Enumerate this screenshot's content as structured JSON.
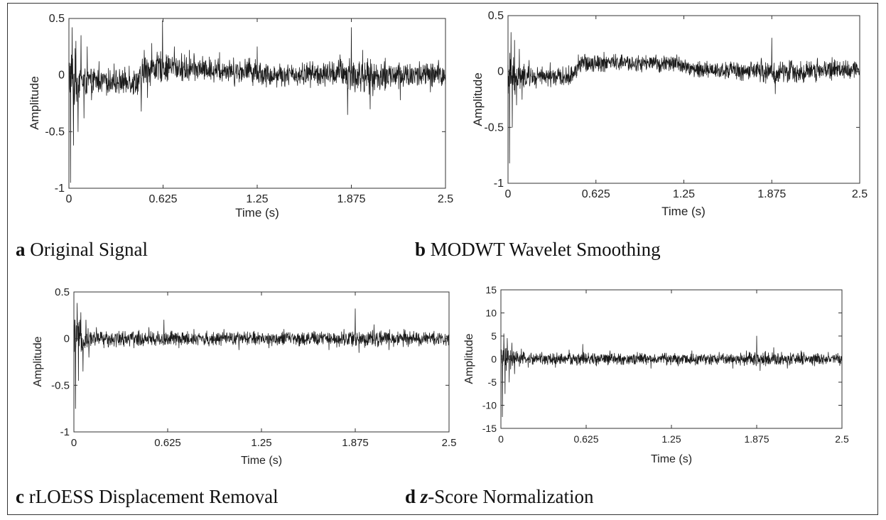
{
  "chart_data": [
    {
      "type": "line",
      "panel_letter": "a",
      "caption_text": "Original Signal",
      "xlabel": "Time (s)",
      "ylabel": "Amplitude",
      "xlim": [
        0,
        2.5
      ],
      "ylim": [
        -1,
        0.5
      ],
      "xticks": [
        0,
        0.625,
        1.25,
        1.875,
        2.5
      ],
      "xtick_labels": [
        "0",
        "0.625",
        "1.25",
        "1.875",
        "2.5"
      ],
      "yticks": [
        -1,
        -0.5,
        0,
        0.5
      ],
      "ytick_labels": [
        "-1",
        "-0.5",
        "0",
        "0.5"
      ],
      "grid": false,
      "series_color": "#1a1a1a",
      "series": [
        {
          "x": [
            0,
            0.01,
            0.02,
            0.03,
            0.045,
            0.06,
            0.08,
            0.1,
            0.12,
            0.15,
            0.2,
            0.25,
            0.3,
            0.35,
            0.4,
            0.45,
            0.48,
            0.5,
            0.52,
            0.55,
            0.6,
            0.62,
            0.65,
            0.7,
            0.75,
            0.8,
            0.9,
            1.0,
            1.1,
            1.2,
            1.25,
            1.3,
            1.4,
            1.5,
            1.6,
            1.7,
            1.8,
            1.85,
            1.875,
            1.9,
            1.95,
            2.0,
            2.1,
            2.2,
            2.3,
            2.4,
            2.5
          ],
          "y": [
            0.05,
            -0.95,
            0.42,
            -0.62,
            0.3,
            -0.5,
            0.35,
            -0.38,
            0.25,
            -0.22,
            0.12,
            -0.18,
            0.1,
            -0.15,
            0.08,
            -0.12,
            -0.32,
            0.22,
            -0.2,
            0.28,
            0.12,
            0.48,
            0.05,
            0.25,
            -0.05,
            0.22,
            0.0,
            0.2,
            -0.1,
            0.15,
            0.25,
            -0.05,
            0.1,
            -0.08,
            0.12,
            -0.1,
            0.18,
            -0.35,
            0.42,
            -0.15,
            0.22,
            -0.3,
            0.15,
            -0.22,
            0.1,
            -0.15,
            0.05
          ],
          "noise_amp": [
            0.25,
            0.25,
            0.24,
            0.22,
            0.2,
            0.16,
            0.14,
            0.12,
            0.11,
            0.1,
            0.09,
            0.09,
            0.09,
            0.09,
            0.09,
            0.1,
            0.12,
            0.12,
            0.11,
            0.12,
            0.11,
            0.11,
            0.1,
            0.1,
            0.1,
            0.1,
            0.09,
            0.09,
            0.09,
            0.09,
            0.1,
            0.09,
            0.08,
            0.08,
            0.09,
            0.09,
            0.1,
            0.14,
            0.14,
            0.13,
            0.12,
            0.12,
            0.11,
            0.11,
            0.1,
            0.1,
            0.1
          ],
          "offset": [
            0,
            -0.05,
            -0.05,
            -0.05,
            -0.05,
            -0.05,
            -0.05,
            -0.05,
            -0.05,
            -0.05,
            -0.05,
            -0.05,
            -0.06,
            -0.06,
            -0.06,
            -0.06,
            -0.04,
            0.05,
            0.05,
            0.06,
            0.07,
            0.07,
            0.07,
            0.07,
            0.06,
            0.06,
            0.05,
            0.05,
            0.04,
            0.04,
            0.03,
            0.0,
            0.0,
            0.0,
            0.01,
            0.01,
            0.02,
            0.0,
            0.0,
            -0.01,
            -0.01,
            -0.02,
            -0.01,
            0.0,
            0.0,
            0.0,
            0.0
          ]
        }
      ]
    },
    {
      "type": "line",
      "panel_letter": "b",
      "caption_text": "MODWT Wavelet Smoothing",
      "xlabel": "Time (s)",
      "ylabel": "Amplitude",
      "xlim": [
        0,
        2.5
      ],
      "ylim": [
        -1,
        0.5
      ],
      "xticks": [
        0,
        0.625,
        1.25,
        1.875,
        2.5
      ],
      "xtick_labels": [
        "0",
        "0.625",
        "1.25",
        "1.875",
        "2.5"
      ],
      "yticks": [
        -1,
        -0.5,
        0,
        0.5
      ],
      "ytick_labels": [
        "-1",
        "-0.5",
        "0",
        "0.5"
      ],
      "grid": false,
      "series_color": "#1a1a1a",
      "series": [
        {
          "x": [
            0,
            0.01,
            0.02,
            0.03,
            0.045,
            0.06,
            0.08,
            0.1,
            0.15,
            0.2,
            0.3,
            0.4,
            0.45,
            0.5,
            0.55,
            0.6,
            0.7,
            0.8,
            0.9,
            1.0,
            1.1,
            1.2,
            1.3,
            1.4,
            1.5,
            1.6,
            1.7,
            1.8,
            1.875,
            1.9,
            2.0,
            2.1,
            2.2,
            2.3,
            2.4,
            2.5
          ],
          "y": [
            0.0,
            -0.82,
            0.35,
            -0.5,
            0.28,
            -0.3,
            0.2,
            -0.25,
            0.1,
            -0.15,
            0.08,
            -0.12,
            -0.1,
            0.15,
            0.05,
            0.1,
            0.08,
            0.12,
            0.05,
            0.1,
            0.08,
            0.15,
            0.0,
            0.05,
            -0.02,
            0.08,
            -0.05,
            0.12,
            0.3,
            -0.2,
            0.1,
            -0.1,
            0.12,
            -0.08,
            0.1,
            0.0
          ],
          "noise_amp": [
            0.2,
            0.2,
            0.18,
            0.16,
            0.14,
            0.12,
            0.1,
            0.09,
            0.08,
            0.07,
            0.07,
            0.07,
            0.07,
            0.07,
            0.07,
            0.07,
            0.07,
            0.06,
            0.06,
            0.06,
            0.06,
            0.06,
            0.06,
            0.06,
            0.06,
            0.07,
            0.07,
            0.08,
            0.09,
            0.09,
            0.08,
            0.08,
            0.08,
            0.08,
            0.07,
            0.07
          ],
          "offset": [
            0,
            -0.05,
            -0.05,
            -0.05,
            -0.05,
            -0.05,
            -0.05,
            -0.05,
            -0.05,
            -0.05,
            -0.05,
            -0.05,
            -0.04,
            0.05,
            0.08,
            0.08,
            0.08,
            0.08,
            0.07,
            0.07,
            0.07,
            0.07,
            0.02,
            0.02,
            0.01,
            0.01,
            0.0,
            0.0,
            0.0,
            -0.02,
            0.0,
            0.0,
            0.01,
            0.02,
            0.02,
            0.02
          ]
        }
      ]
    },
    {
      "type": "line",
      "panel_letter": "c",
      "caption_text": "rLOESS Displacement Removal",
      "xlabel": "Time (s)",
      "ylabel": "Amplitude",
      "xlim": [
        0,
        2.5
      ],
      "ylim": [
        -1,
        0.5
      ],
      "xticks": [
        0,
        0.625,
        1.25,
        1.875,
        2.5
      ],
      "xtick_labels": [
        "0",
        "0.625",
        "1.25",
        "1.875",
        "2.5"
      ],
      "yticks": [
        -1,
        -0.5,
        0,
        0.5
      ],
      "ytick_labels": [
        "-1",
        "-0.5",
        "0",
        "0.5"
      ],
      "grid": false,
      "series_color": "#1a1a1a",
      "series": [
        {
          "x": [
            0,
            0.01,
            0.02,
            0.03,
            0.045,
            0.06,
            0.08,
            0.1,
            0.15,
            0.2,
            0.3,
            0.4,
            0.5,
            0.6,
            0.7,
            0.8,
            0.9,
            1.0,
            1.1,
            1.2,
            1.3,
            1.4,
            1.5,
            1.6,
            1.7,
            1.8,
            1.875,
            1.9,
            2.0,
            2.1,
            2.2,
            2.3,
            2.4,
            2.5
          ],
          "y": [
            0.0,
            -0.75,
            0.38,
            -0.45,
            0.28,
            -0.35,
            0.2,
            -0.2,
            0.12,
            -0.1,
            0.08,
            -0.1,
            0.12,
            0.2,
            -0.1,
            0.1,
            -0.08,
            0.1,
            -0.12,
            0.08,
            -0.1,
            0.1,
            -0.08,
            0.08,
            -0.12,
            0.1,
            0.32,
            -0.15,
            0.15,
            -0.12,
            0.1,
            -0.08,
            0.08,
            0.0
          ],
          "noise_amp": [
            0.2,
            0.2,
            0.18,
            0.16,
            0.14,
            0.12,
            0.1,
            0.08,
            0.07,
            0.07,
            0.07,
            0.07,
            0.07,
            0.07,
            0.07,
            0.06,
            0.06,
            0.06,
            0.06,
            0.06,
            0.06,
            0.06,
            0.06,
            0.06,
            0.06,
            0.07,
            0.08,
            0.08,
            0.07,
            0.07,
            0.07,
            0.06,
            0.06,
            0.06
          ],
          "offset": [
            0,
            0,
            0,
            0,
            0,
            0,
            0,
            0,
            0,
            0,
            0,
            0,
            0,
            0,
            0,
            0,
            0,
            0,
            0,
            0,
            0,
            0,
            0,
            0,
            0,
            0,
            0,
            0,
            0,
            0,
            0,
            0,
            0,
            0
          ]
        }
      ]
    },
    {
      "type": "line",
      "panel_letter": "d",
      "caption_prefix": "z",
      "caption_text": "-Score Normalization",
      "xlabel": "Time (s)",
      "ylabel": "Amplitude",
      "xlim": [
        0,
        2.5
      ],
      "ylim": [
        -15,
        15
      ],
      "xticks": [
        0,
        0.625,
        1.25,
        1.875,
        2.5
      ],
      "xtick_labels": [
        "0",
        "0.625",
        "1.25",
        "1.875",
        "2.5"
      ],
      "yticks": [
        -15,
        -10,
        -5,
        0,
        5,
        10,
        15
      ],
      "ytick_labels": [
        "-15",
        "-10",
        "-5",
        "0",
        "5",
        "10",
        "15"
      ],
      "grid": false,
      "series_color": "#1a1a1a",
      "series": [
        {
          "x": [
            0,
            0.01,
            0.02,
            0.03,
            0.045,
            0.06,
            0.08,
            0.1,
            0.15,
            0.2,
            0.3,
            0.4,
            0.5,
            0.6,
            0.7,
            0.8,
            0.9,
            1.0,
            1.1,
            1.2,
            1.3,
            1.4,
            1.5,
            1.6,
            1.7,
            1.8,
            1.875,
            1.9,
            2.0,
            2.1,
            2.2,
            2.3,
            2.4,
            2.5
          ],
          "y": [
            0.0,
            -12.5,
            5.5,
            -7.5,
            4.5,
            -5.0,
            3.5,
            -3.2,
            2.2,
            -1.8,
            1.5,
            -1.8,
            2.0,
            3.2,
            -1.5,
            1.8,
            -1.2,
            1.5,
            -2.0,
            1.2,
            -1.5,
            1.8,
            -1.2,
            1.5,
            -2.0,
            1.8,
            5.0,
            -2.5,
            2.5,
            -2.0,
            1.8,
            -1.5,
            1.5,
            0.0
          ],
          "noise_amp": [
            3.0,
            3.0,
            2.8,
            2.5,
            2.2,
            1.9,
            1.6,
            1.4,
            1.2,
            1.1,
            1.1,
            1.1,
            1.1,
            1.1,
            1.1,
            1.0,
            1.0,
            1.0,
            1.0,
            1.0,
            1.0,
            1.0,
            1.0,
            1.0,
            1.0,
            1.1,
            1.3,
            1.3,
            1.2,
            1.1,
            1.1,
            1.0,
            1.0,
            1.0
          ],
          "offset": [
            0,
            0,
            0,
            0,
            0,
            0,
            0,
            0,
            0,
            0,
            0,
            0,
            0,
            0,
            0,
            0,
            0,
            0,
            0,
            0,
            0,
            0,
            0,
            0,
            0,
            0,
            0,
            0,
            0,
            0,
            0,
            0,
            0,
            0
          ]
        }
      ]
    }
  ]
}
